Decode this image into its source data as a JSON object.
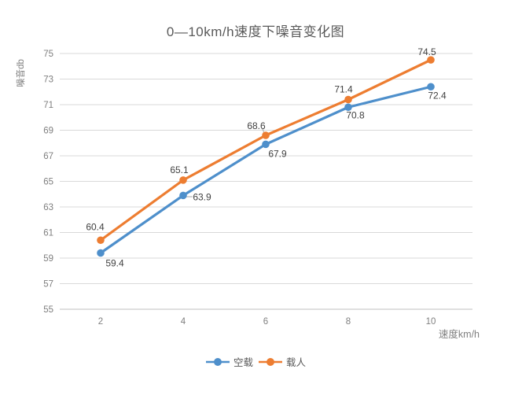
{
  "chart_data": {
    "type": "line",
    "title": "0—10km/h速度下噪音变化图",
    "xlabel": "速度km/h",
    "ylabel": "噪音db",
    "categories": [
      2,
      4,
      6,
      8,
      10
    ],
    "series": [
      {
        "name": "空载",
        "values": [
          59.4,
          63.9,
          67.9,
          70.8,
          72.4
        ],
        "color": "#4E8FCB"
      },
      {
        "name": "载人",
        "values": [
          60.4,
          65.1,
          68.6,
          71.4,
          74.5
        ],
        "color": "#ED7D31"
      }
    ],
    "ylim": [
      55,
      75
    ],
    "yticks": [
      55,
      57,
      59,
      61,
      63,
      65,
      67,
      69,
      71,
      73,
      75
    ],
    "grid": true,
    "data_labels": true,
    "legend_position": "bottom",
    "colors": {
      "gridline": "#D9D9D9",
      "axis_line": "#BFBFBF",
      "tick_label": "#7F7F7F",
      "data_label": "#404040",
      "title": "#595959",
      "leader_line": "#A6A6A6"
    }
  }
}
